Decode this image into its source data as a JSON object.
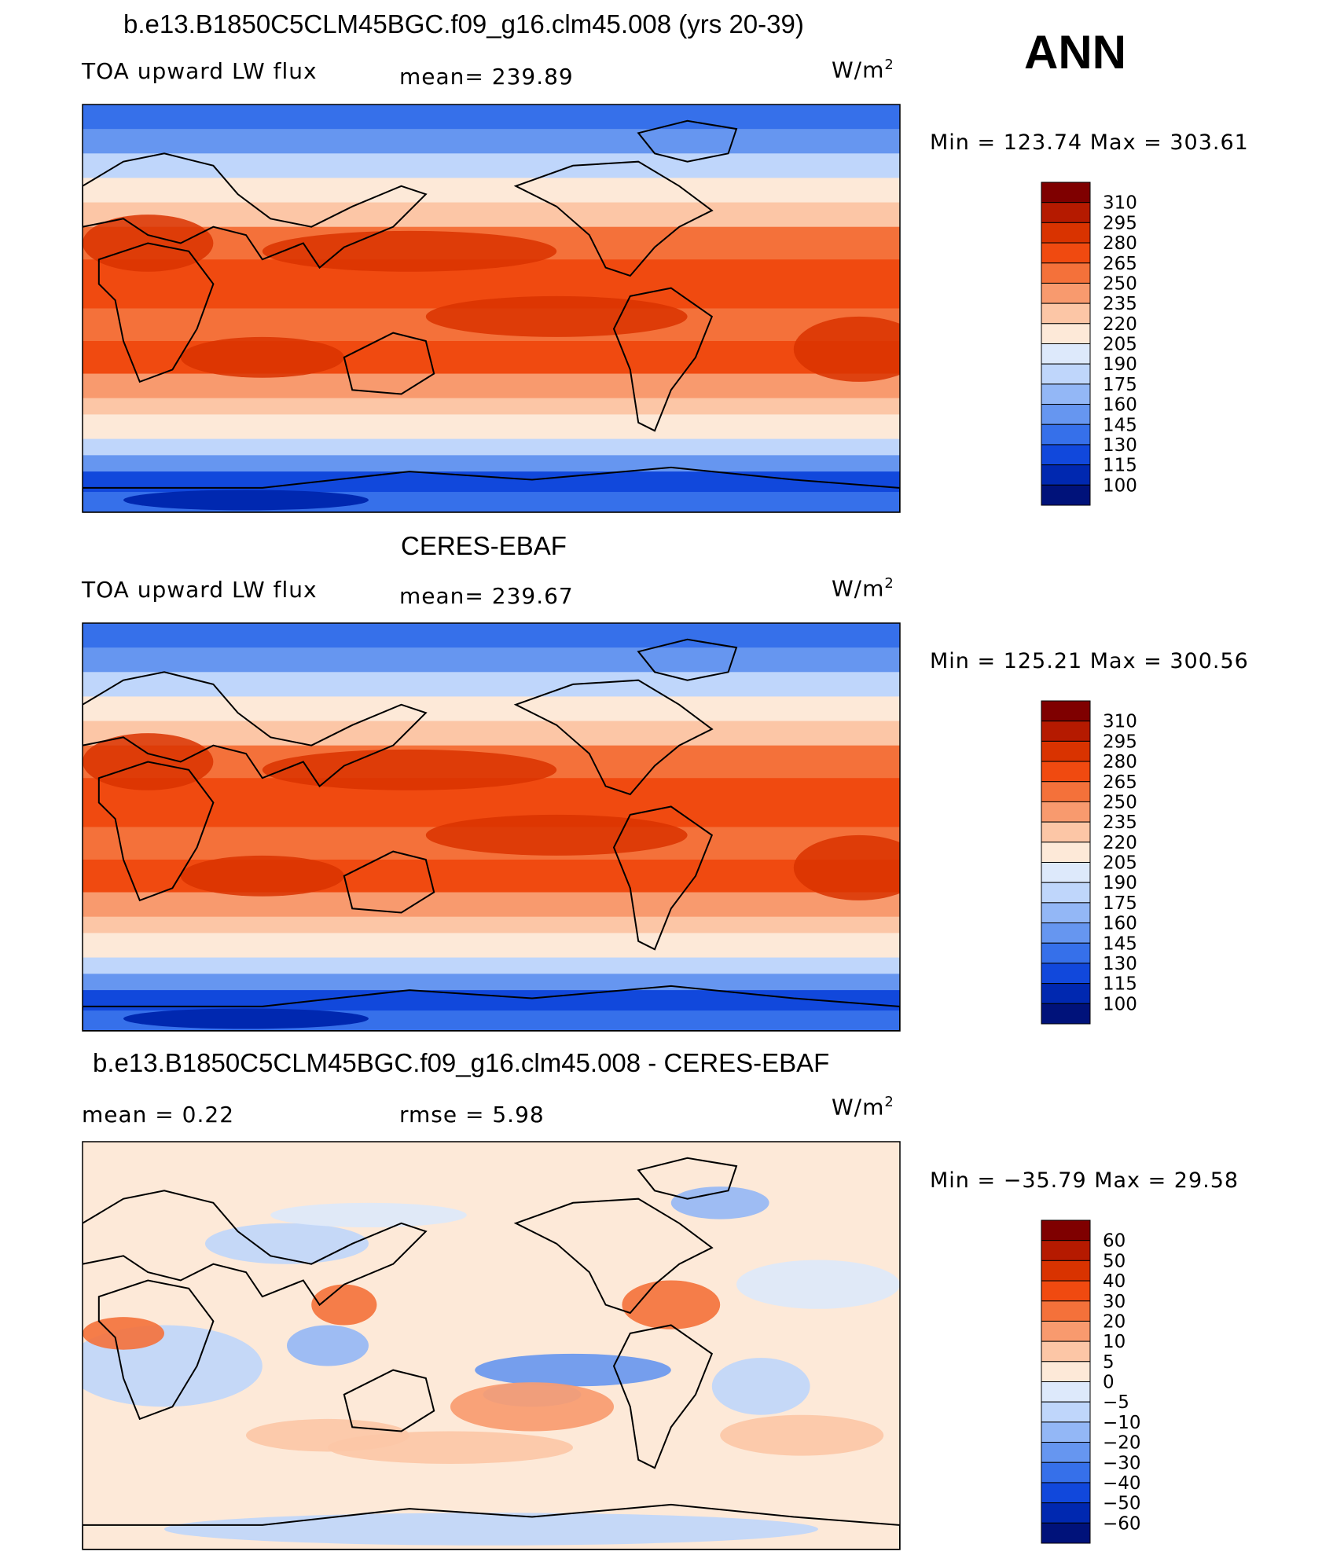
{
  "season": "ANN",
  "units_base": "W/m",
  "units_exp": "2",
  "panels": [
    {
      "title": "b.e13.B1850C5CLM45BGC.f09_g16.clm45.008 (yrs 20-39)",
      "left_label": "TOA upward LW flux",
      "center_label": "mean=  239.89",
      "minmax": "Min  =  123.74  Max  =  303.61",
      "map_kind": "model"
    },
    {
      "title": "CERES-EBAF",
      "left_label": "TOA upward LW flux",
      "center_label": "mean=  239.67",
      "minmax": "Min  =  125.21  Max  =  300.56",
      "map_kind": "obs"
    },
    {
      "title": "b.e13.B1850C5CLM45BGC.f09_g16.clm45.008 - CERES-EBAF",
      "left_label": "mean  =      0.22",
      "center_label": "rmse  =      5.98",
      "minmax": "Min  =  −35.79  Max  =    29.58",
      "map_kind": "diff"
    }
  ],
  "chart_data": [
    {
      "type": "heatmap",
      "title": "b.e13.B1850C5CLM45BGC.f09_g16.clm45.008 (yrs 20-39)",
      "variable": "TOA upward LW flux",
      "mean": 239.89,
      "min": 123.74,
      "max": 303.61,
      "colorbar_levels": [
        "310",
        "295",
        "280",
        "265",
        "250",
        "235",
        "220",
        "205",
        "190",
        "175",
        "160",
        "145",
        "130",
        "115",
        "100"
      ],
      "colorbar_colors": [
        "#7f0000",
        "#b51a00",
        "#d93300",
        "#f04a10",
        "#f4713a",
        "#f89a6e",
        "#fcc6a6",
        "#fde9d8",
        "#dde9fb",
        "#bfd6fb",
        "#93b7f6",
        "#6696f0",
        "#3670ea",
        "#1148dc",
        "#0028b0",
        "#00127a"
      ]
    },
    {
      "type": "heatmap",
      "title": "CERES-EBAF",
      "variable": "TOA upward LW flux",
      "mean": 239.67,
      "min": 125.21,
      "max": 300.56,
      "colorbar_levels": [
        "310",
        "295",
        "280",
        "265",
        "250",
        "235",
        "220",
        "205",
        "190",
        "175",
        "160",
        "145",
        "130",
        "115",
        "100"
      ],
      "colorbar_colors": [
        "#7f0000",
        "#b51a00",
        "#d93300",
        "#f04a10",
        "#f4713a",
        "#f89a6e",
        "#fcc6a6",
        "#fde9d8",
        "#dde9fb",
        "#bfd6fb",
        "#93b7f6",
        "#6696f0",
        "#3670ea",
        "#1148dc",
        "#0028b0",
        "#00127a"
      ]
    },
    {
      "type": "heatmap",
      "title": "b.e13.B1850C5CLM45BGC.f09_g16.clm45.008 - CERES-EBAF",
      "mean": 0.22,
      "rmse": 5.98,
      "min": -35.79,
      "max": 29.58,
      "colorbar_levels": [
        "60",
        "50",
        "40",
        "30",
        "20",
        "10",
        "5",
        "0",
        "−5",
        "−10",
        "−20",
        "−30",
        "−40",
        "−50",
        "−60"
      ],
      "colorbar_colors": [
        "#7f0000",
        "#b51a00",
        "#d93300",
        "#f04a10",
        "#f4713a",
        "#f89a6e",
        "#fcc6a6",
        "#fde9d8",
        "#dde9fb",
        "#bfd6fb",
        "#93b7f6",
        "#6696f0",
        "#3670ea",
        "#1148dc",
        "#0028b0",
        "#00127a"
      ]
    }
  ]
}
